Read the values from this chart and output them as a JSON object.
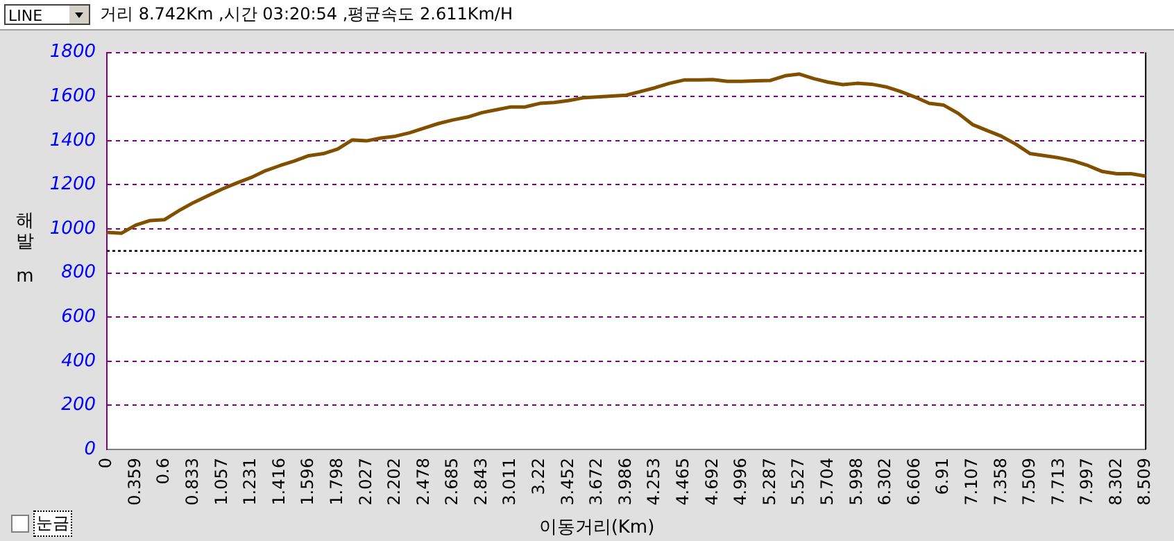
{
  "chart_data": {
    "type": "line",
    "title": "거리 8.742Km ,시간 03:20:54 ,평균속도 2.611Km/H",
    "xlabel": "이동거리(Km)",
    "ylabel": "해발 m",
    "annotations": [
      "LINE",
      "눈금"
    ],
    "categories": [
      "0",
      null,
      "0.359",
      null,
      "0.6",
      null,
      "0.833",
      null,
      "1.057",
      null,
      "1.231",
      null,
      "1.416",
      null,
      "1.596",
      null,
      "1.798",
      null,
      "2.027",
      null,
      "2.202",
      null,
      "2.478",
      null,
      "2.685",
      null,
      "2.843",
      null,
      "3.011",
      null,
      "3.22",
      null,
      "3.452",
      null,
      "3.672",
      null,
      "3.986",
      null,
      "4.253",
      null,
      "4.465",
      null,
      "4.692",
      null,
      "4.996",
      null,
      "5.287",
      null,
      "5.527",
      null,
      "5.704",
      null,
      "5.998",
      null,
      "6.302",
      null,
      "6.606",
      null,
      "6.91",
      null,
      "7.107",
      null,
      "7.358",
      null,
      "7.509",
      null,
      "7.713",
      null,
      "7.997",
      null,
      "8.302",
      null,
      "8.509"
    ],
    "series": [
      {
        "color": "#805000",
        "values": [
          984,
          980,
          1017,
          1038,
          1042,
          1083,
          1119,
          1150,
          1181,
          1208,
          1233,
          1264,
          1287,
          1308,
          1332,
          1341,
          1362,
          1403,
          1399,
          1412,
          1420,
          1436,
          1457,
          1478,
          1494,
          1507,
          1527,
          1540,
          1553,
          1553,
          1569,
          1573,
          1582,
          1594,
          1598,
          1602,
          1606,
          1623,
          1640,
          1660,
          1675,
          1675,
          1677,
          1669,
          1669,
          1671,
          1673,
          1694,
          1702,
          1681,
          1665,
          1654,
          1660,
          1656,
          1644,
          1623,
          1598,
          1569,
          1561,
          1524,
          1473,
          1446,
          1420,
          1384,
          1341,
          1332,
          1322,
          1308,
          1287,
          1260,
          1250,
          1250,
          1239
        ]
      }
    ],
    "ylim": [
      0,
      1800
    ],
    "yticks": [
      0,
      200,
      400,
      600,
      800,
      1000,
      1200,
      1400,
      1600,
      1800
    ],
    "ref_lines": [
      {
        "axis": "y",
        "value": 900,
        "color": "#000000",
        "line_style": "dotted"
      }
    ],
    "grid": "y",
    "marker": "none",
    "line_style": "solid",
    "legend": false
  }
}
